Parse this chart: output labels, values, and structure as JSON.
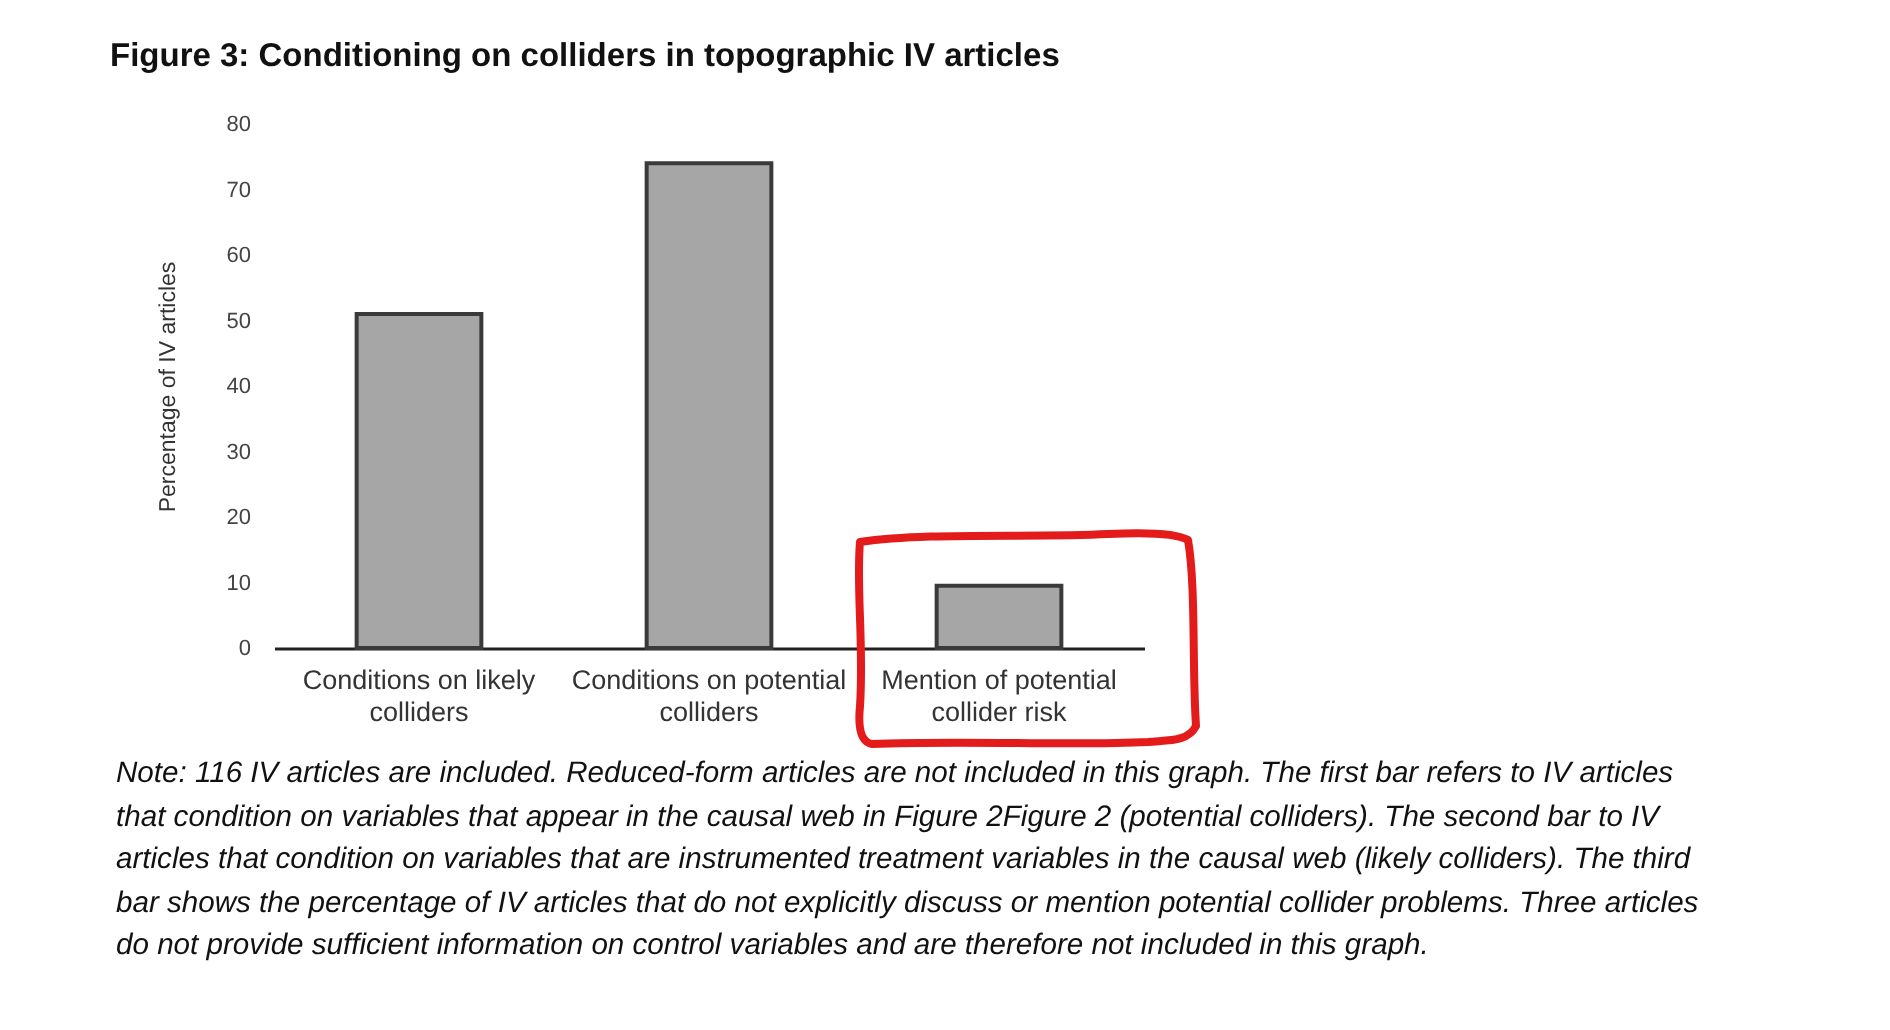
{
  "chart_data": {
    "type": "bar",
    "title": "Figure 3: Conditioning on colliders in topographic IV articles",
    "ylabel": "Percentage of IV articles",
    "categories": [
      "Conditions on likely colliders",
      "Conditions on potential colliders",
      "Mention of potential collider risk"
    ],
    "values": [
      51,
      74,
      9.5
    ],
    "color": "#a6a6a6",
    "ylim": [
      0,
      80
    ],
    "yticks": [
      0,
      10,
      20,
      30,
      40,
      50,
      60,
      70,
      80
    ],
    "annotations": [
      "Note: 116 IV articles are included. Reduced-form articles are not included in this graph. The first bar refers to IV articles that condition on variables that appear in the causal web in Figure 2Figure 2 (potential colliders). The second bar to IV articles that condition on variables that are instrumented treatment variables in the causal web (likely colliders). The third bar shows the percentage of IV articles that do not explicitly discuss or mention potential collider problems. Three articles do not provide sufficient information on control variables and are therefore not included in this graph."
    ]
  }
}
